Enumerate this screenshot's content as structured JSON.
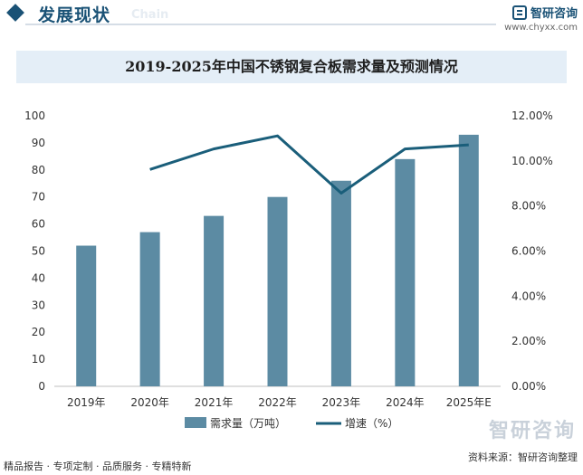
{
  "header": {
    "title": "发展现状",
    "ghost": "Chain",
    "brand_name": "智研咨询",
    "brand_url": "www.chyxx.com"
  },
  "footer": {
    "left": "精品报告 · 专项定制 · 品质服务 · 专精特新",
    "right": "资料来源：智研咨询整理"
  },
  "watermark": {
    "text": "智研咨询"
  },
  "colors": {
    "bar": "#5c8ba3",
    "line": "#1a5e7a",
    "title_band": "#e4eef7",
    "brand": "#1a5276"
  },
  "chart_data": {
    "type": "bar",
    "title": "2019-2025年中国不锈钢复合板需求量及预测情况",
    "categories": [
      "2019年",
      "2020年",
      "2021年",
      "2022年",
      "2023年",
      "2024年",
      "2025年E"
    ],
    "series": [
      {
        "name": "需求量（万吨）",
        "type": "bar",
        "axis": "left",
        "values": [
          52,
          57,
          63,
          70,
          76,
          84,
          93
        ]
      },
      {
        "name": "增速（%）",
        "type": "line",
        "axis": "right",
        "values": [
          null,
          9.62,
          10.53,
          11.11,
          8.57,
          10.53,
          10.71
        ]
      }
    ],
    "y_left": {
      "min": 0,
      "max": 100,
      "ticks": [
        "0",
        "10",
        "20",
        "30",
        "40",
        "50",
        "60",
        "70",
        "80",
        "90",
        "100"
      ]
    },
    "y_right": {
      "min": 0,
      "max": 12,
      "ticks": [
        "0.00%",
        "2.00%",
        "4.00%",
        "6.00%",
        "8.00%",
        "10.00%",
        "12.00%"
      ]
    },
    "grid": false,
    "legend_position": "bottom"
  }
}
